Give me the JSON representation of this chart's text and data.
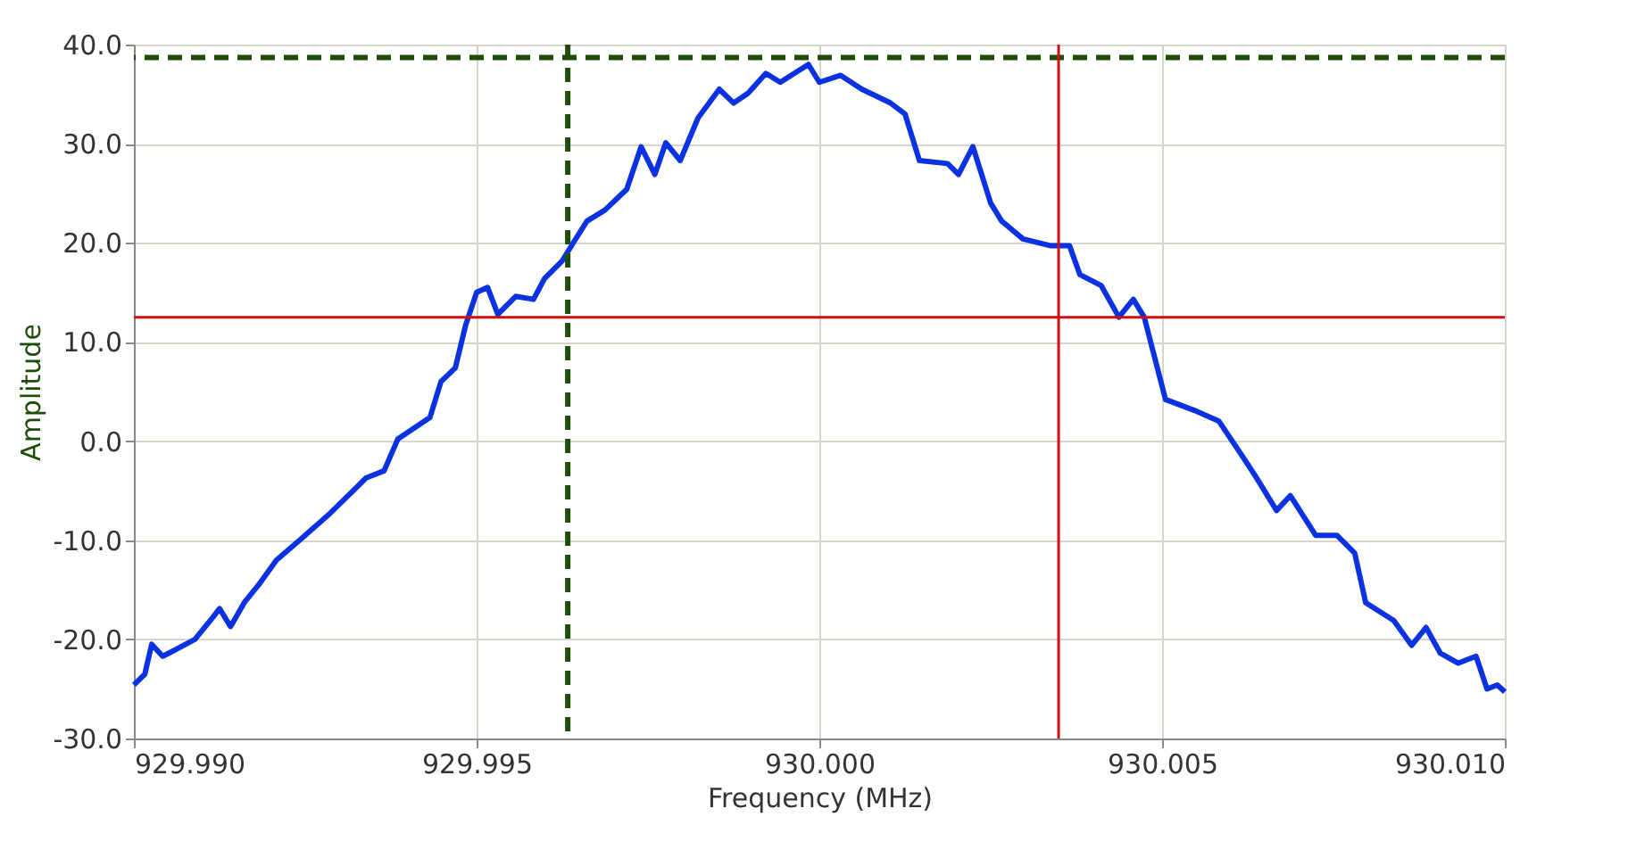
{
  "chart_data": {
    "type": "line",
    "xlabel": "Frequency (MHz)",
    "ylabel": "Amplitude",
    "x": [
      929.99,
      929.99016,
      929.99026,
      929.99042,
      929.99062,
      929.99089,
      929.99115,
      929.99125,
      929.99141,
      929.99161,
      929.99182,
      929.99208,
      929.99245,
      929.99286,
      929.99323,
      929.99339,
      929.99365,
      929.99385,
      929.99417,
      929.99432,
      929.99448,
      929.99469,
      929.99484,
      929.995,
      929.99516,
      929.99531,
      929.99557,
      929.99583,
      929.99599,
      929.99625,
      929.99641,
      929.99661,
      929.99687,
      929.99719,
      929.9974,
      929.9976,
      929.99776,
      929.99797,
      929.99823,
      929.99854,
      929.99875,
      929.99896,
      929.99922,
      929.99943,
      929.99984,
      930.0,
      930.00031,
      930.00062,
      930.00104,
      930.00125,
      930.00146,
      930.00187,
      930.00203,
      930.00224,
      930.0025,
      930.00266,
      930.00297,
      930.00338,
      930.00365,
      930.0038,
      930.00411,
      930.00437,
      930.00458,
      930.00474,
      930.00505,
      930.00547,
      930.00583,
      930.00614,
      930.00635,
      930.00667,
      930.00687,
      930.00724,
      930.00755,
      930.00781,
      930.00797,
      930.00838,
      930.00864,
      930.00885,
      930.00906,
      930.00932,
      930.00958,
      930.00974,
      930.00989,
      930.01
    ],
    "series": [
      {
        "color": "#0a32e0",
        "values": [
          -24.6,
          -23.5,
          -20.5,
          -21.7,
          -21.0,
          -20.0,
          -17.8,
          -16.9,
          -18.7,
          -16.3,
          -14.5,
          -12.0,
          -9.8,
          -7.3,
          -4.8,
          -3.7,
          -3.0,
          0.2,
          1.7,
          2.4,
          6.0,
          7.4,
          11.7,
          15.0,
          15.5,
          12.8,
          14.6,
          14.3,
          16.4,
          18.2,
          20.0,
          22.2,
          23.3,
          25.4,
          29.7,
          26.9,
          30.1,
          28.3,
          32.6,
          35.5,
          34.1,
          35.1,
          37.1,
          36.2,
          38.0,
          36.2,
          36.9,
          35.5,
          34.1,
          33.0,
          28.3,
          28.0,
          26.9,
          29.7,
          24.0,
          22.2,
          20.4,
          19.7,
          19.7,
          16.8,
          15.7,
          12.5,
          14.3,
          12.5,
          4.2,
          3.1,
          2.0,
          -1.2,
          -3.4,
          -7.0,
          -5.5,
          -9.5,
          -9.5,
          -11.3,
          -16.3,
          -18.1,
          -20.6,
          -18.8,
          -21.4,
          -22.4,
          -21.7,
          -25.0,
          -24.6,
          -25.3
        ]
      }
    ],
    "xlim": [
      929.99,
      930.01
    ],
    "xticks": [
      {
        "value": 929.99,
        "label": "929.990"
      },
      {
        "value": 929.995,
        "label": "929.995"
      },
      {
        "value": 930.0,
        "label": "930.000"
      },
      {
        "value": 930.005,
        "label": "930.005"
      },
      {
        "value": 930.01,
        "label": "930.010"
      }
    ],
    "ylim": [
      -30,
      40
    ],
    "yticks": [
      {
        "value": -30,
        "label": "-30.0"
      },
      {
        "value": -20,
        "label": "-20.0"
      },
      {
        "value": -10,
        "label": "-10.0"
      },
      {
        "value": 0,
        "label": "0.0"
      },
      {
        "value": 10,
        "label": "10.0"
      },
      {
        "value": 20,
        "label": "20.0"
      },
      {
        "value": 30,
        "label": "30.0"
      },
      {
        "value": 40,
        "label": "40.0"
      }
    ],
    "ref_lines": [
      {
        "axis": "x",
        "value": 929.99633,
        "color": "#1e4d0a",
        "line_style": "dashed"
      },
      {
        "axis": "y",
        "value": 38.7,
        "color": "#1e4d0a",
        "line_style": "dashed"
      },
      {
        "axis": "x",
        "value": 930.00349,
        "color": "#cc1111",
        "line_style": "solid"
      },
      {
        "axis": "y",
        "value": 12.5,
        "color": "#cc1111",
        "line_style": "solid"
      }
    ],
    "grid": true
  }
}
